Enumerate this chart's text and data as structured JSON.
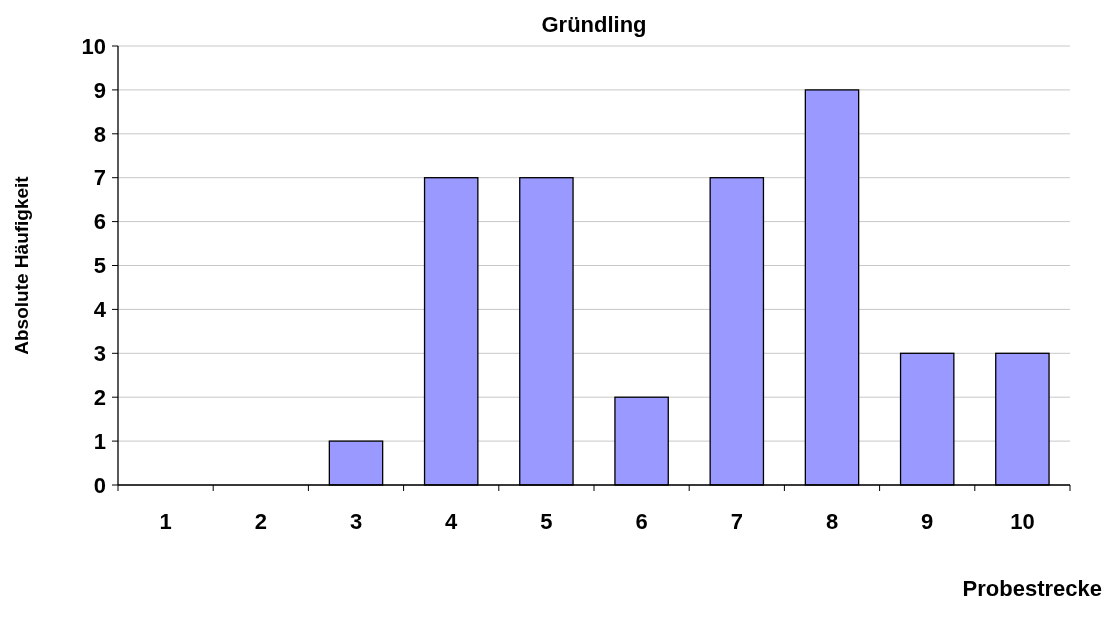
{
  "chart_data": {
    "type": "bar",
    "title": "Gründling",
    "xlabel": "Probestrecke",
    "ylabel": "Absolute Häufigkeit",
    "categories": [
      "1",
      "2",
      "3",
      "4",
      "5",
      "6",
      "7",
      "8",
      "9",
      "10"
    ],
    "values": [
      0,
      0,
      1,
      7,
      7,
      2,
      7,
      9,
      3,
      3
    ],
    "color": "#9999ff",
    "ylim": [
      0,
      10
    ],
    "yticks": [
      0,
      1,
      2,
      3,
      4,
      5,
      6,
      7,
      8,
      9,
      10
    ],
    "grid": "y"
  }
}
